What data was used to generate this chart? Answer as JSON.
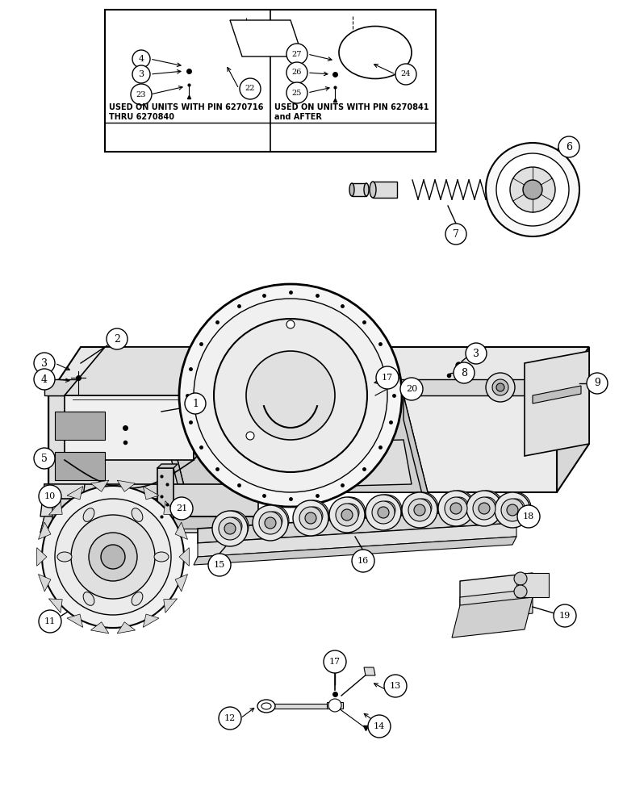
{
  "bg": "#ffffff",
  "lc": "#000000",
  "inset_box1_text": "USED ON UNITS WITH PIN 6270716\nTHRU 6270840",
  "inset_box2_text": "USED ON UNITS WITH PIN 6270841\nand AFTER",
  "figsize": [
    7.72,
    10.0
  ],
  "dpi": 100
}
